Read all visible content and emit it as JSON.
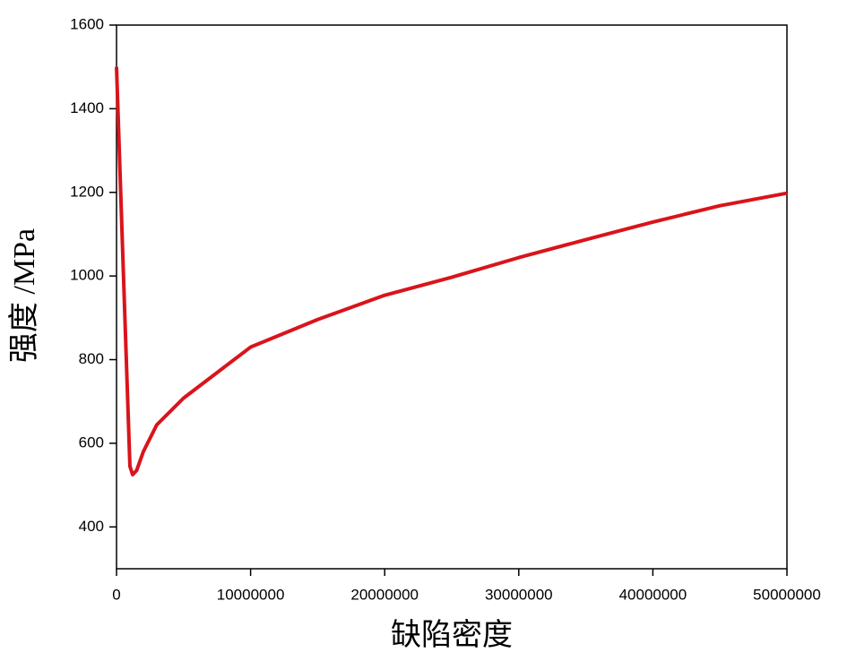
{
  "chart_data": {
    "type": "line",
    "xlabel": "缺陷密度",
    "ylabel": "强度 /MPa",
    "x": [
      0,
      500000,
      1000000,
      1200000,
      1500000,
      2000000,
      3000000,
      5000000,
      10000000,
      15000000,
      20000000,
      25000000,
      30000000,
      35000000,
      40000000,
      45000000,
      50000000
    ],
    "series": [
      {
        "name": "强度",
        "color": "#d9141b",
        "values": [
          1500,
          1019,
          545,
          525,
          535,
          580,
          644,
          708,
          830,
          896,
          954,
          997,
          1044,
          1087,
          1129,
          1168,
          1198
        ]
      }
    ],
    "xlim": [
      0,
      50000000
    ],
    "xticks": [
      0,
      10000000,
      20000000,
      30000000,
      40000000,
      50000000
    ],
    "ylim": [
      300,
      1600
    ],
    "yticks": [
      400,
      600,
      800,
      1000,
      1200,
      1400,
      1600
    ]
  }
}
